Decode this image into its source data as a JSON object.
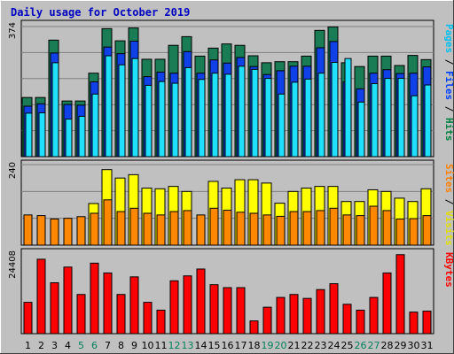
{
  "chart_data": {
    "type": "bar",
    "title": "Daily usage for October 2019",
    "days": [
      "1",
      "2",
      "3",
      "4",
      "5",
      "6",
      "7",
      "8",
      "9",
      "10",
      "11",
      "12",
      "13",
      "14",
      "15",
      "16",
      "17",
      "18",
      "19",
      "20",
      "21",
      "22",
      "23",
      "24",
      "25",
      "26",
      "27",
      "28",
      "29",
      "30",
      "31"
    ],
    "weekend_days": [
      "5",
      "6",
      "12",
      "13",
      "19",
      "20",
      "26",
      "27"
    ],
    "panels": [
      {
        "id": "requests",
        "ymax_label": "374",
        "ymax": 374,
        "legend": [
          {
            "name": "Pages",
            "color": "#00c0f0"
          },
          {
            "name": "Files",
            "color": "#0040ff"
          },
          {
            "name": "Hits",
            "color": "#008040"
          }
        ],
        "separator_color": "#000000",
        "series": [
          {
            "name": "Hits",
            "color": "#1a7c54",
            "values": [
              170,
              170,
              335,
              160,
              160,
              240,
              368,
              333,
              370,
              280,
              280,
              320,
              345,
              289,
              312,
              324,
              320,
              290,
              270,
              273,
              273,
              289,
              363,
              373,
              270,
              259,
              289,
              289,
              262,
              291,
              279
            ]
          },
          {
            "name": "Files",
            "color": "#1040e8",
            "values": [
              145,
              152,
              298,
              150,
              148,
              215,
              315,
              296,
              332,
              230,
              243,
              240,
              302,
              240,
              278,
              269,
              285,
              259,
              236,
              247,
              260,
              260,
              313,
              331,
              215,
              195,
              240,
              250,
              239,
              240,
              258
            ]
          },
          {
            "name": "Pages",
            "color": "#20e0ff",
            "values": [
              125,
              126,
              270,
              108,
              116,
              180,
              290,
              264,
              282,
              205,
              216,
              211,
              256,
              222,
              240,
              237,
              260,
              251,
              225,
              180,
              214,
              223,
              240,
              271,
              282,
              157,
              210,
              225,
              225,
              175,
              206
            ]
          }
        ]
      },
      {
        "id": "visitors",
        "ymax_label": "240",
        "ymax": 240,
        "legend": [
          {
            "name": "Sites",
            "color": "#ff8000"
          },
          {
            "name": "Visits",
            "color": "#e0e000"
          }
        ],
        "separator_color": "#000000",
        "series": [
          {
            "name": "Visits",
            "color": "#ffff00",
            "values": [
              0,
              0,
              0,
              0,
              0,
              124,
              225,
              200,
              210,
              170,
              168,
              175,
              160,
              0,
              190,
              170,
              195,
              195,
              185,
              125,
              160,
              170,
              175,
              175,
              130,
              130,
              165,
              160,
              140,
              130,
              168
            ]
          },
          {
            "name": "Sites",
            "color": "#ff8800",
            "values": [
              90,
              88,
              78,
              80,
              85,
              95,
              135,
              100,
              110,
              95,
              90,
              100,
              103,
              90,
              110,
              104,
              98,
              95,
              90,
              86,
              100,
              100,
              103,
              110,
              90,
              88,
              116,
              103,
              78,
              79,
              88
            ]
          }
        ]
      },
      {
        "id": "kbytes",
        "ymax_label": "24408",
        "ymax": 24408,
        "legend": [
          {
            "name": "KBytes",
            "color": "#ff0000"
          }
        ],
        "series": [
          {
            "name": "KBytes",
            "color": "#ff0000",
            "values": [
              9600,
              22800,
              15600,
              20400,
              12000,
              21600,
              18600,
              12000,
              17400,
              9600,
              7200,
              16200,
              17700,
              19800,
              15000,
              14100,
              14100,
              3900,
              8100,
              11100,
              12000,
              10800,
              13500,
              15300,
              9000,
              7200,
              11100,
              18600,
              24200,
              6600,
              6900
            ]
          }
        ]
      }
    ]
  }
}
